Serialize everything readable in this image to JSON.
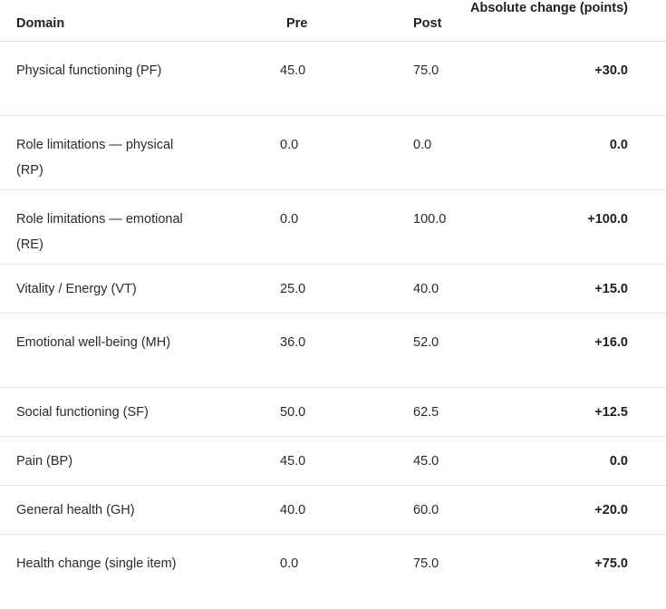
{
  "table": {
    "headers": {
      "domain": "Domain",
      "pre": "Pre",
      "post": "Post",
      "change": "Absolute change (points)"
    },
    "rows": [
      {
        "domain": "Physical functioning (PF)",
        "pre": "45.0",
        "post": "75.0",
        "change": "+30.0"
      },
      {
        "domain": "Role limitations — physical (RP)",
        "pre": "0.0",
        "post": "0.0",
        "change": "0.0"
      },
      {
        "domain": "Role limitations — emotional (RE)",
        "pre": "0.0",
        "post": "100.0",
        "change": "+100.0"
      },
      {
        "domain": "Vitality / Energy (VT)",
        "pre": "25.0",
        "post": "40.0",
        "change": "+15.0"
      },
      {
        "domain": "Emotional well-being (MH)",
        "pre": "36.0",
        "post": "52.0",
        "change": "+16.0"
      },
      {
        "domain": "Social functioning (SF)",
        "pre": "50.0",
        "post": "62.5",
        "change": "+12.5"
      },
      {
        "domain": "Pain (BP)",
        "pre": "45.0",
        "post": "45.0",
        "change": "0.0"
      },
      {
        "domain": "General health (GH)",
        "pre": "40.0",
        "post": "60.0",
        "change": "+20.0"
      },
      {
        "domain": "Health change (single item)",
        "pre": "0.0",
        "post": "75.0",
        "change": "+75.0"
      }
    ]
  }
}
